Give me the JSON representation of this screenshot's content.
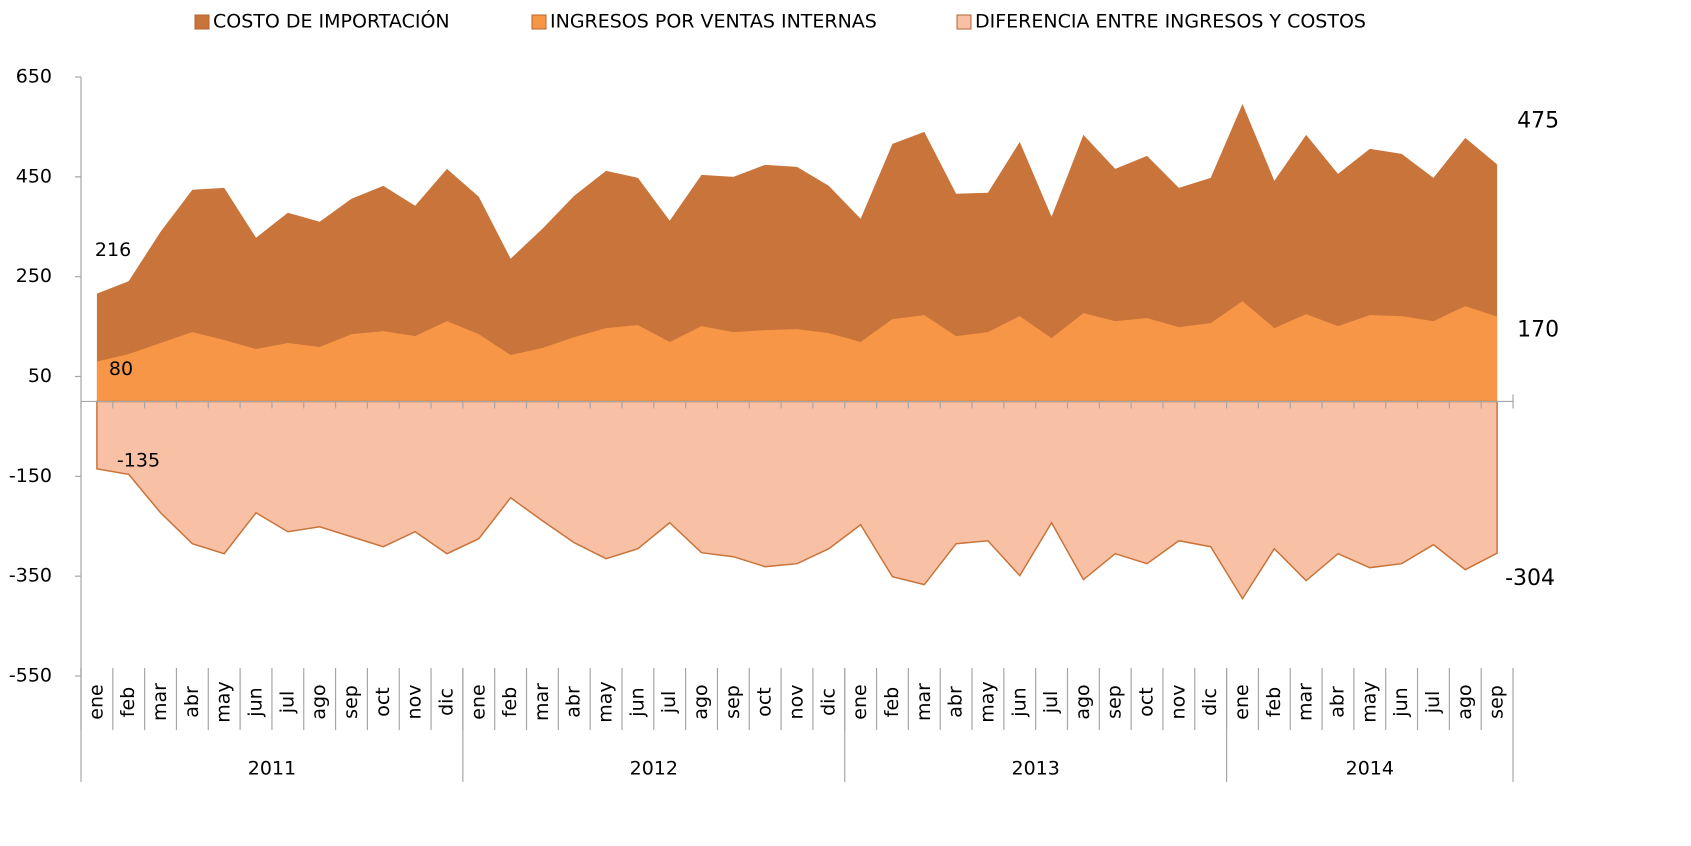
{
  "chart_data": {
    "type": "area",
    "categories": [
      "ene",
      "feb",
      "mar",
      "abr",
      "may",
      "jun",
      "jul",
      "ago",
      "sep",
      "oct",
      "nov",
      "dic",
      "ene",
      "feb",
      "mar",
      "abr",
      "may",
      "jun",
      "jul",
      "ago",
      "sep",
      "oct",
      "nov",
      "dic",
      "ene",
      "feb",
      "mar",
      "abr",
      "may",
      "jun",
      "jul",
      "ago",
      "sep",
      "oct",
      "nov",
      "dic",
      "ene",
      "feb",
      "mar",
      "abr",
      "may",
      "jun",
      "jul",
      "ago",
      "sep"
    ],
    "years": [
      "2011",
      "2012",
      "2013",
      "2014"
    ],
    "series": [
      {
        "name": "COSTO DE IMPORTACIÓN",
        "color": "#c8743a",
        "values": [
          216,
          241,
          340,
          424,
          428,
          328,
          378,
          360,
          406,
          432,
          392,
          466,
          410,
          286,
          346,
          412,
          462,
          448,
          362,
          454,
          450,
          474,
          470,
          432,
          366,
          516,
          540,
          416,
          418,
          520,
          370,
          534,
          466,
          492,
          428,
          448,
          596,
          442,
          534,
          456,
          506,
          496,
          448,
          528,
          475
        ]
      },
      {
        "name": "INGRESOS POR VENTAS INTERNAS",
        "color": "#f79646",
        "values": [
          80,
          95,
          117,
          139,
          123,
          105,
          117,
          109,
          135,
          141,
          131,
          161,
          135,
          93,
          107,
          129,
          147,
          153,
          119,
          151,
          139,
          143,
          145,
          137,
          119,
          165,
          173,
          131,
          139,
          171,
          127,
          177,
          161,
          167,
          149,
          157,
          201,
          147,
          175,
          151,
          173,
          171,
          161,
          191,
          170
        ]
      },
      {
        "name": "DIFERENCIA ENTRE INGRESOS Y COSTOS",
        "color": "#f8c1a6",
        "values": [
          -135,
          -146,
          -223,
          -285,
          -305,
          -223,
          -261,
          -251,
          -271,
          -291,
          -261,
          -305,
          -275,
          -193,
          -239,
          -283,
          -315,
          -295,
          -243,
          -303,
          -311,
          -331,
          -325,
          -295,
          -247,
          -351,
          -367,
          -285,
          -279,
          -349,
          -243,
          -357,
          -305,
          -325,
          -279,
          -291,
          -395,
          -295,
          -359,
          -305,
          -333,
          -325,
          -287,
          -337,
          -304
        ]
      }
    ],
    "ylim": [
      -550,
      650
    ],
    "yticks": [
      -550,
      -350,
      -150,
      50,
      250,
      450,
      650
    ]
  }
}
